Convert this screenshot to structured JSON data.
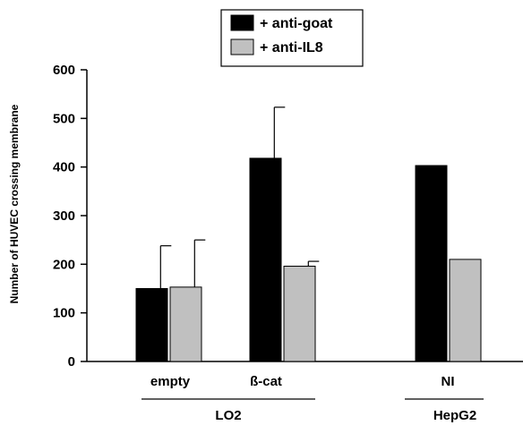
{
  "chart_data": {
    "type": "bar",
    "ylabel": "Number of HUVEC  crossing membrane",
    "ylim": [
      0,
      600
    ],
    "yticks": [
      0,
      100,
      200,
      300,
      400,
      500,
      600
    ],
    "categories": [
      "empty",
      "ß-cat",
      "NI"
    ],
    "groups": [
      {
        "label": "LO2",
        "categories": [
          "empty",
          "ß-cat"
        ]
      },
      {
        "label": "HepG2",
        "categories": [
          "NI"
        ]
      }
    ],
    "series": [
      {
        "name": "+ anti-goat",
        "color": "#000000",
        "values": [
          150,
          418,
          403
        ],
        "errors": [
          88,
          105,
          null
        ]
      },
      {
        "name": "+ anti-IL8",
        "color": "#c0c0c0",
        "values": [
          153,
          196,
          210
        ],
        "errors": [
          97,
          10,
          null
        ]
      }
    ],
    "legend_position": "top-center",
    "grid": false
  }
}
